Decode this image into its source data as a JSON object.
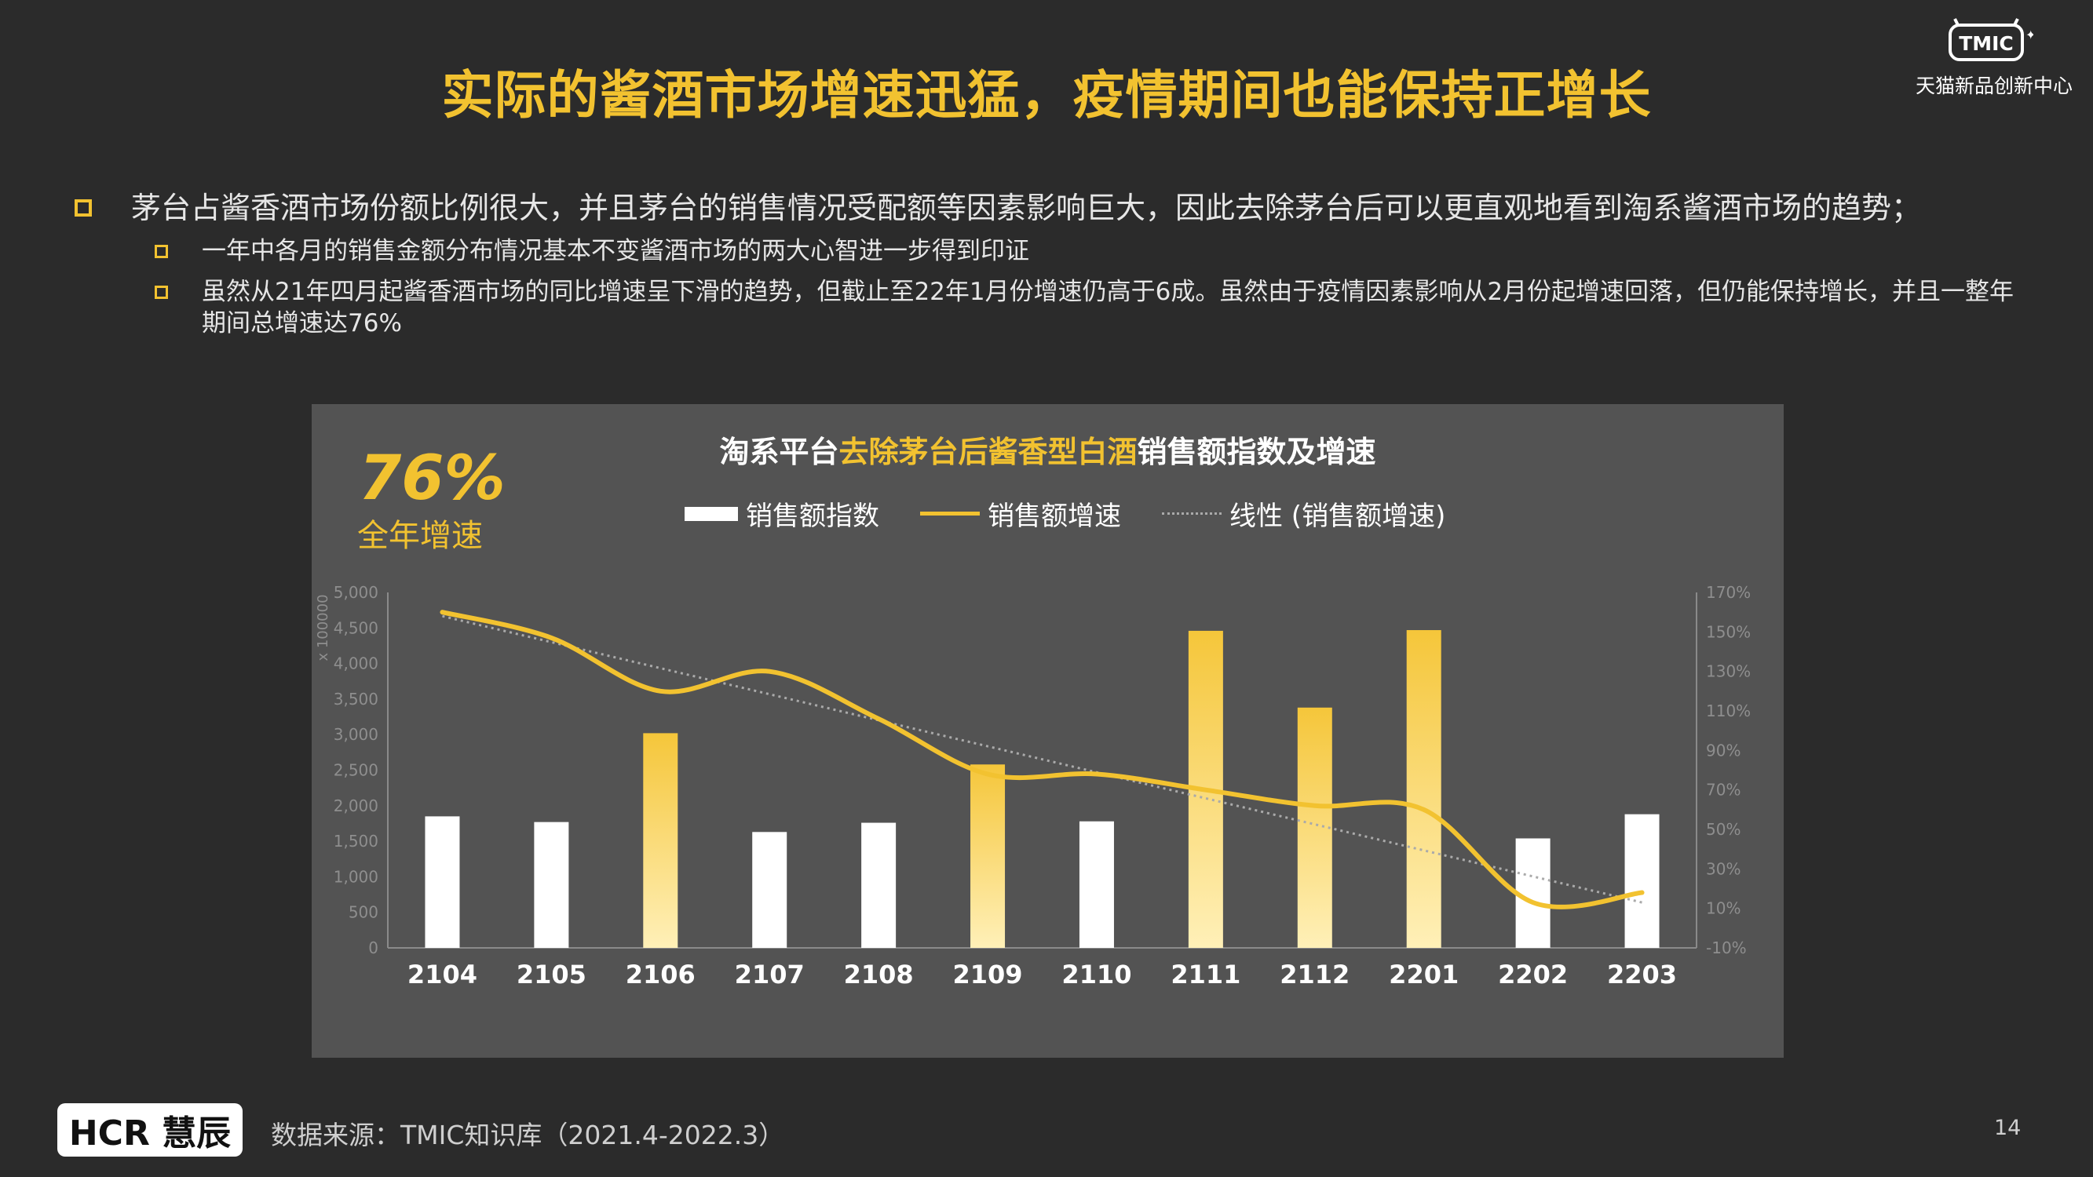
{
  "header": {
    "title": "实际的酱酒市场增速迅猛，疫情期间也能保持正增长",
    "logo_text": "TMIC",
    "logo_subtitle": "天猫新品创新中心"
  },
  "bullets": {
    "main": "茅台占酱香酒市场份额比例很大，并且茅台的销售情况受配额等因素影响巨大，因此去除茅台后可以更直观地看到淘系酱酒市场的趋势；",
    "sub1": "一年中各月的销售金额分布情况基本不变酱酒市场的两大心智进一步得到印证",
    "sub2": "虽然从21年四月起酱香酒市场的同比增速呈下滑的趋势，但截止至22年1月份增速仍高于6成。虽然由于疫情因素影响从2月份起增速回落，但仍能保持增长，并且一整年期间总增速达76%"
  },
  "highlight": {
    "value": "76%",
    "label": "全年增速"
  },
  "chart_data": {
    "type": "bar",
    "title_parts": [
      "淘系平台",
      "去除茅台后酱香型白酒",
      "销售额指数及增速"
    ],
    "categories": [
      "2104",
      "2105",
      "2106",
      "2107",
      "2108",
      "2109",
      "2110",
      "2111",
      "2112",
      "2201",
      "2202",
      "2203"
    ],
    "y_unit_label": "x 100000",
    "ylim": [
      0,
      5000
    ],
    "yticks": [
      "0",
      "500",
      "1,000",
      "1,500",
      "2,000",
      "2,500",
      "3,000",
      "3,500",
      "4,000",
      "4,500",
      "5,000"
    ],
    "y2lim": [
      -10,
      170
    ],
    "y2ticks": [
      "-10%",
      "10%",
      "30%",
      "50%",
      "70%",
      "90%",
      "110%",
      "130%",
      "150%",
      "170%"
    ],
    "series": [
      {
        "name": "销售额指数",
        "type": "bar",
        "values": [
          1850,
          1770,
          3020,
          1630,
          1760,
          2580,
          1780,
          4460,
          3380,
          4470,
          1540,
          1880
        ]
      },
      {
        "name": "销售额增速",
        "type": "line",
        "values": [
          160,
          147,
          120,
          130,
          106,
          78,
          78,
          70,
          62,
          60,
          13,
          18
        ]
      },
      {
        "name": "线性 (销售额增速)",
        "type": "trendline",
        "values": [
          158,
          145,
          131,
          118,
          105,
          92,
          79,
          66,
          52,
          39,
          26,
          13
        ]
      }
    ],
    "highlighted_categories": [
      "2106",
      "2109",
      "2111",
      "2112",
      "2201"
    ],
    "colors": {
      "bar": "#ffffff",
      "bar_highlight": "#f5c63a",
      "line": "#f2c230",
      "trend": "#aaaaaa"
    },
    "grid": false,
    "legend_position": "top"
  },
  "footer": {
    "brand": "HCR 慧辰",
    "source": "数据来源：TMIC知识库（2021.4-2022.3）",
    "page": "14"
  }
}
